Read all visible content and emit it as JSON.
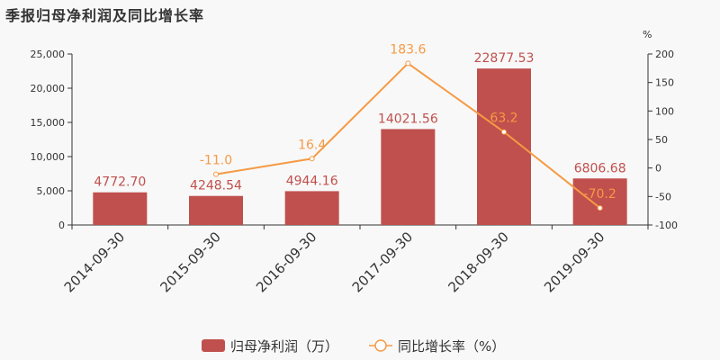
{
  "chart_data": {
    "type": "bar",
    "title": "季报归母净利润及同比增长率",
    "categories": [
      "2014-09-30",
      "2015-09-30",
      "2016-09-30",
      "2017-09-30",
      "2018-09-30",
      "2019-09-30"
    ],
    "series": [
      {
        "name": "归母净利润（万）",
        "type": "bar",
        "axis": "left",
        "color": "#c0504d",
        "values": [
          4772.7,
          4248.54,
          4944.16,
          14021.56,
          22877.53,
          6806.68
        ],
        "labels": [
          "4772.70",
          "4248.54",
          "4944.16",
          "14021.56",
          "22877.53",
          "6806.68"
        ]
      },
      {
        "name": "同比增长率（%）",
        "type": "line",
        "axis": "right",
        "color": "#f59a45",
        "values": [
          null,
          -11.0,
          16.4,
          183.6,
          63.2,
          -70.2
        ],
        "labels": [
          "",
          "-11.0",
          "16.4",
          "183.6",
          "63.2",
          "-70.2"
        ]
      }
    ],
    "y_left": {
      "min": 0,
      "max": 25000,
      "ticks": [
        0,
        5000,
        10000,
        15000,
        20000,
        25000
      ],
      "tick_labels": [
        "0",
        "5,000",
        "10,000",
        "15,000",
        "20,000",
        "25,000"
      ]
    },
    "y_right": {
      "min": -100,
      "max": 200,
      "unit": "%",
      "ticks": [
        -100,
        -50,
        0,
        50,
        100,
        150,
        200
      ],
      "tick_labels": [
        "-100",
        "-50",
        "0",
        "50",
        "100",
        "150",
        "200"
      ]
    },
    "grid": false,
    "legend_position": "bottom-center"
  }
}
